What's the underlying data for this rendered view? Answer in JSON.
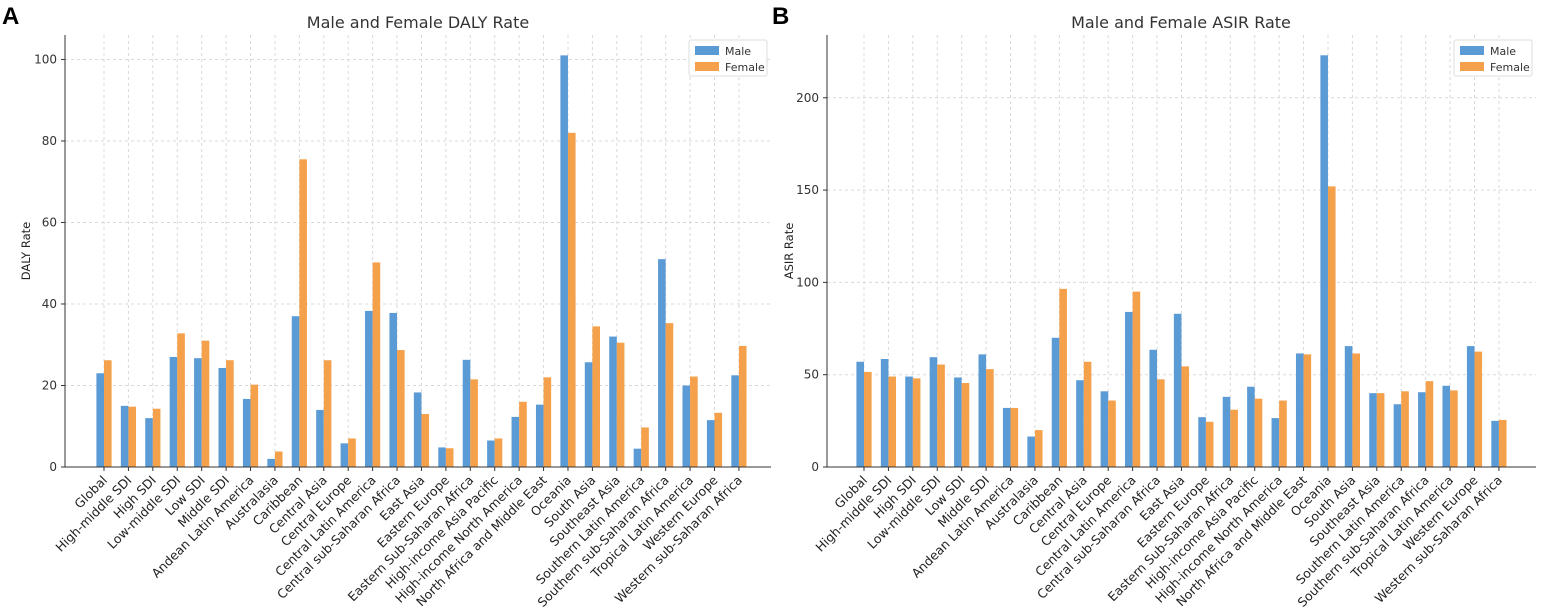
{
  "colors": {
    "male": "#5b9bd5",
    "female": "#f5a04a"
  },
  "chart_data": [
    {
      "panel": "A",
      "type": "bar",
      "title": "Male and Female DALY Rate",
      "xlabel": "",
      "ylabel": "DALY Rate",
      "ylim": [
        0,
        106
      ],
      "yticks": [
        0,
        20,
        40,
        60,
        80,
        100
      ],
      "grid": true,
      "legend": "top-right",
      "categories": [
        "Global",
        "High-middle SDI",
        "High SDI",
        "Low-middle SDI",
        "Low SDI",
        "Middle SDI",
        "Andean Latin America",
        "Australasia",
        "Caribbean",
        "Central Asia",
        "Central Europe",
        "Central Latin America",
        "Central sub-Saharan Africa",
        "East Asia",
        "Eastern Europe",
        "Eastern Sub-Saharan Africa",
        "High-income Asia Pacific",
        "High-income North America",
        "North Africa and Middle East",
        "Oceania",
        "South Asia",
        "Southeast Asia",
        "Southern Latin America",
        "Southern sub-Saharan Africa",
        "Tropical Latin America",
        "Western Europe",
        "Western sub-Saharan Africa"
      ],
      "series": [
        {
          "name": "Male",
          "values": [
            23,
            15,
            12,
            27,
            26.7,
            24.3,
            16.7,
            2,
            37,
            14,
            5.8,
            38.3,
            37.8,
            18.3,
            4.8,
            26.3,
            6.5,
            12.3,
            15.3,
            101,
            25.7,
            32,
            4.5,
            51,
            20,
            11.5,
            22.5
          ]
        },
        {
          "name": "Female",
          "values": [
            26.2,
            14.8,
            14.3,
            32.8,
            31,
            26.2,
            20.2,
            3.8,
            75.5,
            26.2,
            7,
            50.2,
            28.7,
            13,
            4.6,
            21.5,
            7,
            16,
            22,
            82,
            34.5,
            30.5,
            9.7,
            35.3,
            22.2,
            13.3,
            29.7
          ]
        }
      ]
    },
    {
      "panel": "B",
      "type": "bar",
      "title": "Male and Female ASIR Rate",
      "xlabel": "",
      "ylabel": "ASIR Rate",
      "ylim": [
        0,
        234
      ],
      "yticks": [
        0,
        50,
        100,
        150,
        200
      ],
      "grid": true,
      "legend": "top-right",
      "categories": [
        "Global",
        "High-middle SDI",
        "High SDI",
        "Low-middle SDI",
        "Low SDI",
        "Middle SDI",
        "Andean Latin America",
        "Australasia",
        "Caribbean",
        "Central Asia",
        "Central Europe",
        "Central Latin America",
        "Central sub-Saharan Africa",
        "East Asia",
        "Eastern Europe",
        "Eastern Sub-Saharan Africa",
        "High-income Asia Pacific",
        "High-income North America",
        "North Africa and Middle East",
        "Oceania",
        "South Asia",
        "Southeast Asia",
        "Southern Latin America",
        "Southern sub-Saharan Africa",
        "Tropical Latin America",
        "Western Europe",
        "Western sub-Saharan Africa"
      ],
      "series": [
        {
          "name": "Male",
          "values": [
            57,
            58.5,
            49,
            59.5,
            48.5,
            61,
            32,
            16.5,
            70,
            47,
            41,
            84,
            63.5,
            83,
            27,
            38,
            43.5,
            26.5,
            61.5,
            223,
            65.5,
            40,
            34,
            40.5,
            44,
            65.5,
            25
          ]
        },
        {
          "name": "Female",
          "values": [
            51.5,
            49,
            48,
            55.5,
            45.5,
            53,
            32,
            20,
            96.5,
            57,
            36,
            95,
            47.5,
            54.5,
            24.5,
            31,
            37,
            36,
            61,
            152,
            61.5,
            40,
            41,
            46.5,
            41.5,
            62.5,
            25.5
          ]
        }
      ]
    }
  ]
}
